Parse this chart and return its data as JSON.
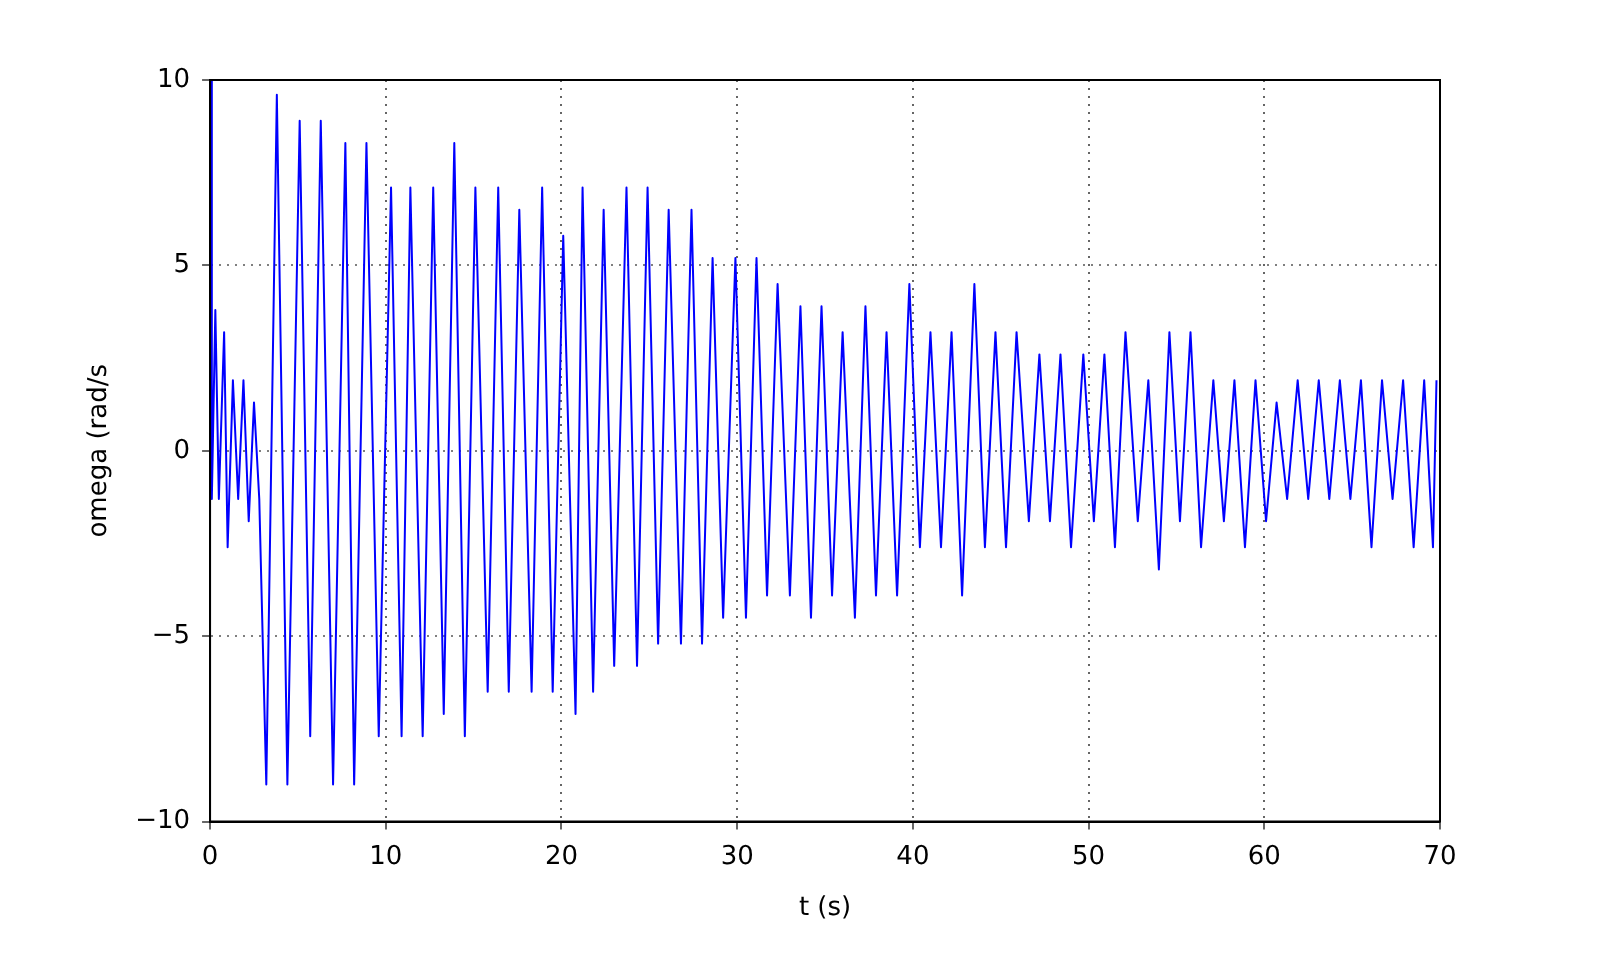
{
  "chart_data": {
    "type": "line",
    "xlabel": "t (s)",
    "ylabel": "omega (rad/s",
    "xlim": [
      0,
      70
    ],
    "ylim": [
      -10,
      10
    ],
    "xticks": [
      0,
      10,
      20,
      30,
      40,
      50,
      60,
      70
    ],
    "yticks": [
      {
        "value": -10,
        "label": "−10"
      },
      {
        "value": -5,
        "label": "−5"
      },
      0,
      5,
      10
    ],
    "grid": true,
    "legend": false,
    "marker": "none",
    "line_style": "solid",
    "series": [
      {
        "color": "#0000ff",
        "x": [
          0,
          0.1,
          0.3,
          0.5,
          0.8,
          1.0,
          1.3,
          1.6,
          1.9,
          2.2,
          2.5,
          2.8,
          3.2,
          3.8,
          4.4,
          5.1,
          5.7,
          6.3,
          7.0,
          7.7,
          8.2,
          8.9,
          9.6,
          10.3,
          10.9,
          11.4,
          12.1,
          12.7,
          13.3,
          13.9,
          14.5,
          15.1,
          15.8,
          16.4,
          17.0,
          17.6,
          18.3,
          18.9,
          19.5,
          20.1,
          20.8,
          21.2,
          21.8,
          22.4,
          23.0,
          23.7,
          24.3,
          24.9,
          25.5,
          26.1,
          26.8,
          27.4,
          28.0,
          28.6,
          29.2,
          29.9,
          30.5,
          31.1,
          31.7,
          32.3,
          33.0,
          33.6,
          34.2,
          34.8,
          35.4,
          36.0,
          36.7,
          37.3,
          37.9,
          38.5,
          39.1,
          39.8,
          40.4,
          41.0,
          41.6,
          42.2,
          42.8,
          43.5,
          44.1,
          44.7,
          45.3,
          45.9,
          46.6,
          47.2,
          47.8,
          48.4,
          49.0,
          49.7,
          50.3,
          50.9,
          51.5,
          52.1,
          52.8,
          53.4,
          54.0,
          54.6,
          55.2,
          55.8,
          56.4,
          57.1,
          57.7,
          58.3,
          58.9,
          59.5,
          60.1,
          60.7,
          61.3,
          61.9,
          62.5,
          63.1,
          63.7,
          64.3,
          64.9,
          65.5,
          66.1,
          66.7,
          67.3,
          67.9,
          68.5,
          69.1,
          69.6,
          69.8
        ],
        "values": [
          10,
          -1.3,
          3.8,
          -1.3,
          3.2,
          -2.6,
          1.9,
          -1.3,
          1.9,
          -1.9,
          1.3,
          -1.3,
          -9,
          9.6,
          -9,
          8.9,
          -7.7,
          8.9,
          -9,
          8.3,
          -9,
          8.3,
          -7.7,
          7.1,
          -7.7,
          7.1,
          -7.7,
          7.1,
          -7.1,
          8.3,
          -7.7,
          7.1,
          -6.5,
          7.1,
          -6.5,
          6.5,
          -6.5,
          7.1,
          -6.5,
          5.8,
          -7.1,
          7.1,
          -6.5,
          6.5,
          -5.8,
          7.1,
          -5.8,
          7.1,
          -5.2,
          6.5,
          -5.2,
          6.5,
          -5.2,
          5.2,
          -4.5,
          5.2,
          -4.5,
          5.2,
          -3.9,
          4.5,
          -3.9,
          3.9,
          -4.5,
          3.9,
          -3.9,
          3.2,
          -4.5,
          3.9,
          -3.9,
          3.2,
          -3.9,
          4.5,
          -2.6,
          3.2,
          -2.6,
          3.2,
          -3.9,
          4.5,
          -2.6,
          3.2,
          -2.6,
          3.2,
          -1.9,
          2.6,
          -1.9,
          2.6,
          -2.6,
          2.6,
          -1.9,
          2.6,
          -2.6,
          3.2,
          -1.9,
          1.9,
          -3.2,
          3.2,
          -1.9,
          3.2,
          -2.6,
          1.9,
          -1.9,
          1.9,
          -2.6,
          1.9,
          -1.9,
          1.3,
          -1.3,
          1.9,
          -1.3,
          1.9,
          -1.3,
          1.9,
          -1.3,
          1.9,
          -2.6,
          1.9,
          -1.3,
          1.9,
          -2.6,
          1.9,
          -2.6,
          1.9
        ]
      }
    ]
  }
}
